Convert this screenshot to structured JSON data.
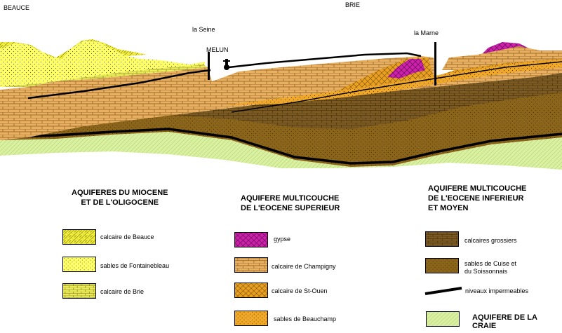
{
  "places": {
    "beauce": "BEAUCE",
    "brie": "BRIE",
    "seine": "la Seine",
    "melun": "MELUN",
    "marne": "la Marne"
  },
  "groups": {
    "miocene": "AQUIFERES DU MIOCENE\nET DE L'OLIGOCENE",
    "eocene_sup": "AQUIFERE MULTICOUCHE\nDE L'EOCENE SUPERIEUR",
    "eocene_inf": "AQUIFERE MULTICOUCHE\nDE L'EOCENE INFERIEUR\nET MOYEN"
  },
  "legend": {
    "calcaire_beauce": "calcaire de Beauce",
    "sables_fontainebleau": "sables de Fontainebleau",
    "calcaire_brie": "calcaire de Brie",
    "gypse": "gypse",
    "calcaire_champigny": "calcaire de Champigny",
    "calcaire_st_ouen": "calcaire de St-Ouen",
    "sables_beauchamp": "sables de Beauchamp",
    "calcaires_grossiers": "calcaires grossiers",
    "sables_cuise": "sables de Cuise et\ndu Soissonnais",
    "niveaux": "niveaux impermeables",
    "craie": "AQUIFERE DE LA CRAIE"
  },
  "colors": {
    "beauce": "#f4f040",
    "fontainebleau": "#ffff66",
    "brie": "#ecec5a",
    "gypse": "#cc22aa",
    "champigny": "#e8b060",
    "st_ouen": "#e8a020",
    "beauchamp": "#f0a828",
    "grossiers": "#7a5a22",
    "cuise": "#8a6418",
    "craie": "#d8f0a0",
    "line": "#000000"
  }
}
